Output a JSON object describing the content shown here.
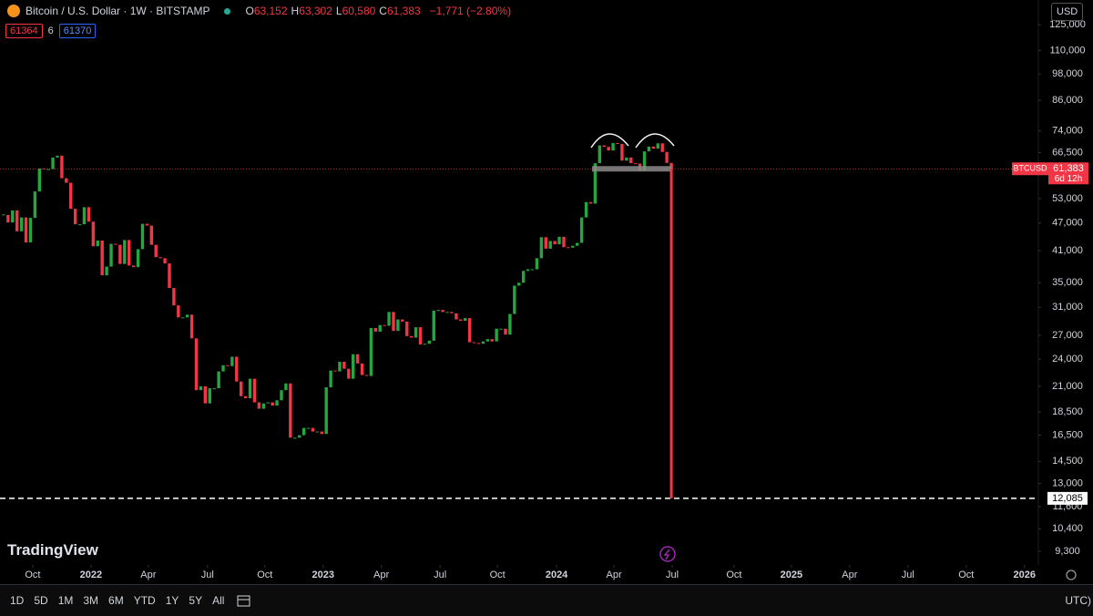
{
  "header": {
    "title": "Bitcoin / U.S. Dollar · 1W · BITSTAMP",
    "ohlc": [
      {
        "key": "O",
        "value": "63,152"
      },
      {
        "key": "H",
        "value": "63,302"
      },
      {
        "key": "L",
        "value": "60,580"
      },
      {
        "key": "C",
        "value": "61,383"
      }
    ],
    "change": "−1,771 (−2.80%)",
    "badges": [
      "61364",
      "6",
      "61370"
    ],
    "currency": "USD"
  },
  "chart_data": {
    "type": "candlestick",
    "log_scale": true,
    "grid": false,
    "series": [
      {
        "name": "BTCUSD",
        "up_color": "#26a641",
        "down_color": "#f23645",
        "values": [
          48900,
          47100,
          50000,
          45100,
          48300,
          42700,
          48200,
          54900,
          61500,
          61300,
          61300,
          64900,
          65500,
          58600,
          57300,
          50400,
          46700,
          46700,
          50800,
          47300,
          41900,
          43100,
          36300,
          37900,
          42400,
          42200,
          38400,
          43200,
          38100,
          37800,
          41300,
          46800,
          46400,
          42200,
          39700,
          39500,
          38500,
          34100,
          31300,
          29500,
          29500,
          29900,
          26600,
          20600,
          21000,
          19300,
          20800,
          20800,
          22600,
          23300,
          23200,
          24300,
          21500,
          20000,
          19800,
          21800,
          19400,
          18800,
          19300,
          19400,
          19100,
          19600,
          20600,
          21300,
          16300,
          16300,
          16500,
          17100,
          17100,
          16800,
          16800,
          16600,
          20900,
          22700,
          22600,
          23700,
          22900,
          21800,
          24600,
          23500,
          22200,
          22100,
          28000,
          27500,
          28400,
          28300,
          30300,
          27600,
          29200,
          28900,
          26900,
          26700,
          28100,
          25800,
          25900,
          26300,
          30500,
          30600,
          30300,
          30300,
          30100,
          29200,
          29000,
          29400,
          26100,
          26000,
          25900,
          26200,
          26500,
          26200,
          27900,
          27900,
          27100,
          30000,
          34500,
          35000,
          37100,
          37400,
          37400,
          39500,
          43800,
          41400,
          43000,
          42300,
          43900,
          41700,
          41600,
          42000,
          42600,
          48300,
          52100,
          51700,
          63100,
          68900,
          68400,
          67200,
          69700,
          69400,
          63900,
          64900,
          63100,
          63000,
          60800,
          66900,
          68500,
          67800,
          69600,
          66700,
          63200,
          61383
        ]
      }
    ],
    "xlim": [
      -0.8,
      230.9
    ],
    "xticks": [
      {
        "value": 6.5,
        "label": "Oct"
      },
      {
        "value": 19.5,
        "label": "2022"
      },
      {
        "value": 32.3,
        "label": "Apr"
      },
      {
        "value": 45.5,
        "label": "Jul"
      },
      {
        "value": 58.3,
        "label": "Oct"
      },
      {
        "value": 71.3,
        "label": "2023"
      },
      {
        "value": 84.3,
        "label": "Apr"
      },
      {
        "value": 97.4,
        "label": "Jul"
      },
      {
        "value": 110.2,
        "label": "Oct"
      },
      {
        "value": 123.4,
        "label": "2024"
      },
      {
        "value": 136.2,
        "label": "Apr"
      },
      {
        "value": 149.2,
        "label": "Jul"
      },
      {
        "value": 163,
        "label": "Oct"
      },
      {
        "value": 175.8,
        "label": "2025"
      },
      {
        "value": 188.8,
        "label": "Apr"
      },
      {
        "value": 201.8,
        "label": "Jul"
      },
      {
        "value": 214.8,
        "label": "Oct"
      },
      {
        "value": 227.8,
        "label": "2026"
      }
    ],
    "ylim": [
      8700,
      129000
    ],
    "yticks": [
      {
        "value": 125000,
        "label": "125,000"
      },
      {
        "value": 110000,
        "label": "110,000"
      },
      {
        "value": 98000,
        "label": "98,000"
      },
      {
        "value": 86000,
        "label": "86,000"
      },
      {
        "value": 74000,
        "label": "74,000"
      },
      {
        "value": 66500,
        "label": "66,500"
      },
      {
        "value": 53000,
        "label": "53,000"
      },
      {
        "value": 47000,
        "label": "47,000"
      },
      {
        "value": 41000,
        "label": "41,000"
      },
      {
        "value": 35000,
        "label": "35,000"
      },
      {
        "value": 31000,
        "label": "31,000"
      },
      {
        "value": 27000,
        "label": "27,000"
      },
      {
        "value": 24000,
        "label": "24,000"
      },
      {
        "value": 21000,
        "label": "21,000"
      },
      {
        "value": 18500,
        "label": "18,500"
      },
      {
        "value": 16500,
        "label": "16,500"
      },
      {
        "value": 14500,
        "label": "14,500"
      },
      {
        "value": 13000,
        "label": "13,000"
      },
      {
        "value": 11600,
        "label": "11,600"
      },
      {
        "value": 10400,
        "label": "10,400"
      },
      {
        "value": 9300,
        "label": "9,300"
      }
    ],
    "last_price": {
      "value": 61383,
      "label": "61,383",
      "countdown": "6d 12h"
    },
    "target": {
      "value": 12085,
      "label": "12,085"
    }
  },
  "logo": "TradingView",
  "toolbar": {
    "ranges": [
      "1D",
      "5D",
      "1M",
      "3M",
      "6M",
      "YTD",
      "1Y",
      "5Y",
      "All"
    ],
    "timezone": "UTC)"
  }
}
